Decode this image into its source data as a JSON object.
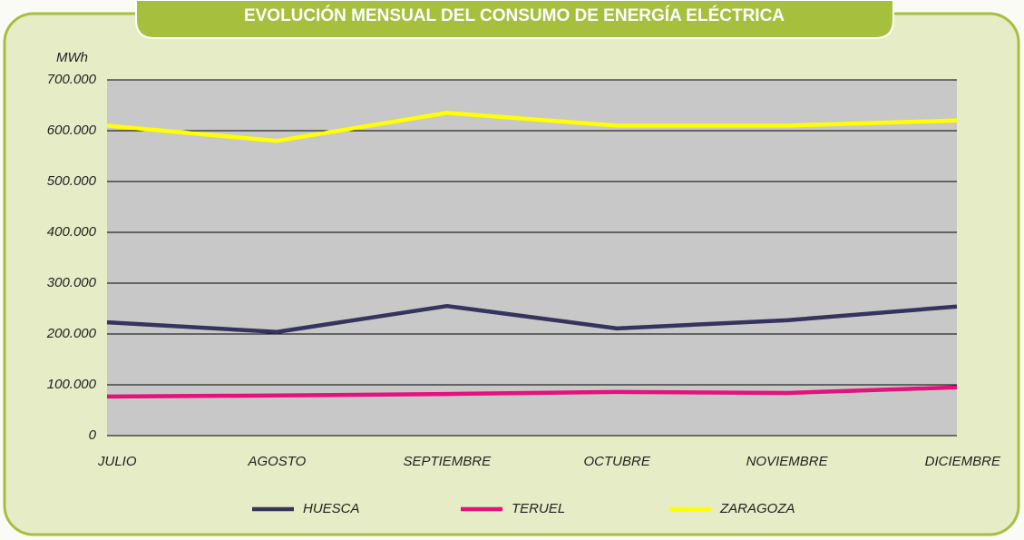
{
  "chart_data": {
    "type": "line",
    "title": "EVOLUCIÓN MENSUAL DEL CONSUMO DE ENERGÍA ELÉCTRICA",
    "y_label": "MWh",
    "categories": [
      "JULIO",
      "AGOSTO",
      "SEPTIEMBRE",
      "OCTUBRE",
      "NOVIEMBRE",
      "DICIEMBRE"
    ],
    "series": [
      {
        "name": "HUESCA",
        "color": "#34345f",
        "values": [
          223000,
          204000,
          255000,
          211000,
          227000,
          254000
        ]
      },
      {
        "name": "TERUEL",
        "color": "#e3127c",
        "values": [
          77000,
          79000,
          82000,
          86000,
          84000,
          95000
        ]
      },
      {
        "name": "ZARAGOZA",
        "color": "#ffff00",
        "values": [
          610000,
          580000,
          635000,
          610000,
          610000,
          620000
        ]
      }
    ],
    "ylim": [
      0,
      700000
    ],
    "yticks": [
      0,
      {
        "value": 100000,
        "label": "100.000"
      },
      {
        "value": 200000,
        "label": "200.000"
      },
      {
        "value": 300000,
        "label": "300.000"
      },
      {
        "value": 400000,
        "label": "400.000"
      },
      {
        "value": 500000,
        "label": "500.000"
      },
      {
        "value": 600000,
        "label": "600.000"
      },
      {
        "value": 700000,
        "label": "700.000"
      }
    ],
    "grid": true,
    "legend": "bottom"
  }
}
